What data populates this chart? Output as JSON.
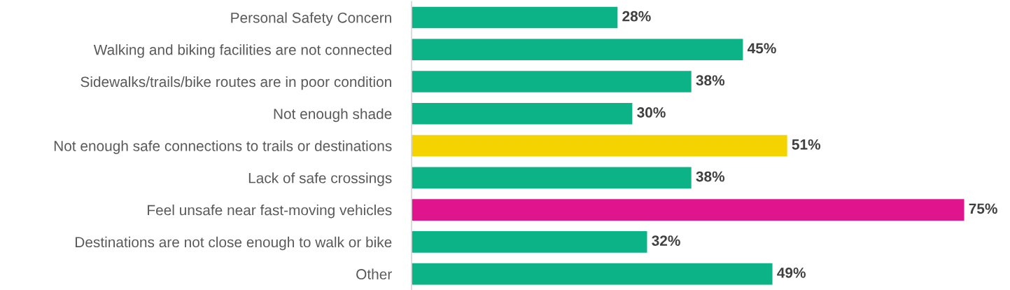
{
  "chart_data": {
    "type": "bar",
    "orientation": "horizontal",
    "categories": [
      "Personal Safety Concern",
      "Walking and biking facilities are not connected",
      "Sidewalks/trails/bike routes are in poor condition",
      "Not enough shade",
      "Not enough safe connections to trails or destinations",
      "Lack of safe crossings",
      "Feel unsafe near fast-moving vehicles",
      "Destinations are not close enough to walk or bike",
      "Other"
    ],
    "values": [
      28,
      45,
      38,
      30,
      51,
      38,
      75,
      32,
      49
    ],
    "colors": [
      "#0bb386",
      "#0bb386",
      "#0bb386",
      "#0bb386",
      "#f5d300",
      "#0bb386",
      "#e0148c",
      "#0bb386",
      "#0bb386"
    ],
    "value_labels": [
      "28%",
      "45%",
      "38%",
      "30%",
      "51%",
      "38%",
      "75%",
      "32%",
      "49%"
    ],
    "grid": false,
    "legend": false
  }
}
